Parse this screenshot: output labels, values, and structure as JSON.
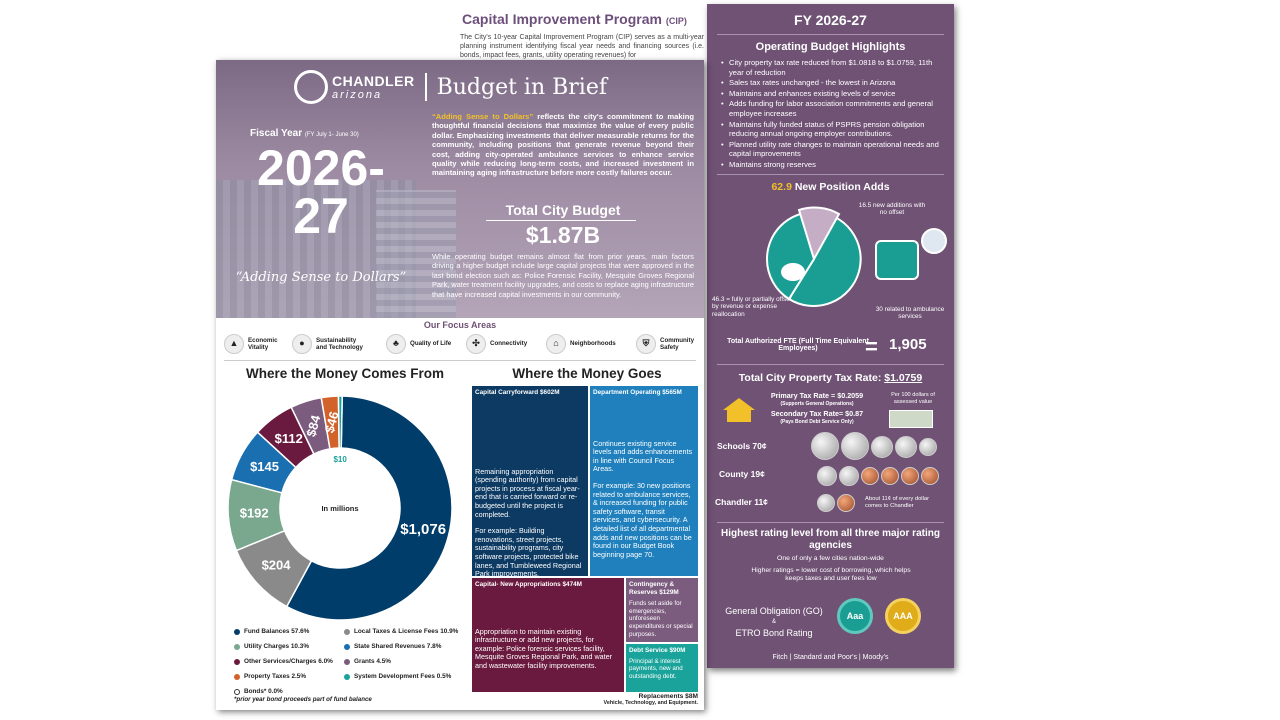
{
  "cip": {
    "title": "Capital Improvement Program",
    "title_abbr": "(CIP)",
    "text": "The City's 10-year Capital Improvement Program (CIP) serves as a multi-year planning instrument identifying fiscal year needs and financing sources (i.e. bonds, impact fees, grants, utility operating revenues) for"
  },
  "brand": {
    "name": "CHANDLER",
    "state": "arizona",
    "doc_title": "Budget in Brief"
  },
  "hero": {
    "fiscal_label": "Fiscal Year",
    "fiscal_sub": "(FY July 1- June 30)",
    "year_top": "2026-",
    "year_bottom": "27",
    "tagline": "“Adding Sense to Dollars”",
    "blurb_lead": "“Adding Sense to Dollars”",
    "blurb": " reflects the city's commitment to making thoughtful financial decisions that maximize the value of every public dollar. Emphasizing investments that deliver measurable returns for the community, including positions that generate revenue beyond their cost, adding city-operated ambulance services to enhance service quality while reducing long-term costs, and increased investment in maintaining aging infrastructure before more costly failures occur.",
    "budget_label": "Total City Budget",
    "budget_value": "$1.87B",
    "para": "While operating budget remains almost flat from prior years, main factors driving a higher budget include large capital projects that were approved in the last bond election such as: Police Forensic Facility, Mesquite Groves Regional Park, water treatment facility upgrades, and costs to replace aging infrastructure that have increased capital investments in our community."
  },
  "focus": {
    "title": "Our Focus Areas",
    "items": [
      {
        "l1": "Economic",
        "l2": "Vitality"
      },
      {
        "l1": "Sustainability",
        "l2": "and Technology"
      },
      {
        "l1": "Quality of Life",
        "l2": ""
      },
      {
        "l1": "Connectivity",
        "l2": ""
      },
      {
        "l1": "Neighborhoods",
        "l2": ""
      },
      {
        "l1": "Community",
        "l2": "Safety"
      }
    ]
  },
  "comes": {
    "title": "Where the Money Comes From",
    "center": "In millions",
    "footnote": "*prior year bond proceeds part of fund balance"
  },
  "goes": {
    "title": "Where the Money Goes",
    "tiles": [
      {
        "head": "Capital Carryforward $602M",
        "body": "Remaining appropriation (spending authority) from capital projects in process at fiscal year-end that is carried forward or re-budgeted until the project is completed.",
        "body2": "For example: Building renovations, street projects, sustainability programs, city software projects, protected bike lanes, and Tumbleweed Regional Park improvements."
      },
      {
        "head": "Department Operating $565M",
        "body": "Continues existing service levels and adds enhancements in line with Council Focus Areas.",
        "body2": "For example: 30 new positions related to ambulance services, & increased funding for public safety software, transit services, and cybersecurity. A detailed list of all departmental adds and new positions can be found in our Budget Book beginning page 70."
      },
      {
        "head": "Capital- New Appropriations $474M",
        "body": "Appropriation to maintain existing infrastructure or add new projects, for example: Police forensic services facility, Mesquite Groves Regional Park, and water and wastewater facility improvements.",
        "body2": ""
      },
      {
        "head": "Contingency & Reserves $129M",
        "body": "Funds set aside for emergencies, unforeseen expenditures or special purposes.",
        "body2": ""
      },
      {
        "head": "Debt Service $90M",
        "body": "Principal & interest payments, new and outstanding debt.",
        "body2": ""
      }
    ],
    "replacements": "Replacements $8M",
    "replacements_sub": "Vehicle, Technology, and Equipment."
  },
  "right": {
    "fy": "FY 2026-27",
    "op_title": "Operating Budget Highlights",
    "bullets": [
      "City property tax rate reduced from $1.0818 to $1.0759, 11th year of reduction",
      "Sales tax rates unchanged - the lowest in Arizona",
      "Maintains and enhances existing levels of service",
      "Adds funding for labor association commitments and general employee increases",
      "Maintains fully funded status of PSPRS pension obligation reducing annual ongoing employer contributions.",
      "Planned utility rate changes to maintain operational needs and capital improvements",
      "Maintains strong reserves"
    ],
    "pos_num": "62.9",
    "pos_label": "New Position Adds",
    "pos_a": "16.5 new additions with no offset",
    "pos_b": "46.3 = fully or partially offset by revenue or expense reallocation",
    "pos_c": "30 related to ambulance services",
    "fte_label": "Total Authorized FTE (Full Time Equivalent Employees)",
    "fte_eq": "=",
    "fte_value": "1,905",
    "ptax_label": "Total City Property Tax Rate:",
    "ptax_value": "$1.0759",
    "primary": "Primary Tax Rate = $0.2059",
    "primary_sub": "(Supports General Operations)",
    "secondary": "Secondary Tax Rate= $0.87",
    "secondary_sub": "(Pays Bond Debt Service Only)",
    "per100": "Per 100 dollars of assessed value",
    "schools": "Schools 70¢",
    "county": "County 19¢",
    "chandler": "Chandler 11¢",
    "chandler_note": "About 11¢ of every dollar comes to Chandler",
    "rating_title": "Highest rating level from all three major rating agencies",
    "rating_sub1": "One of only a few cities nation-wide",
    "rating_sub2": "Higher ratings = lower cost of borrowing, which helps keeps taxes and user fees low",
    "go": "General Obligation (GO)",
    "amp": "&",
    "etro": "ETRO Bond Rating",
    "aaa1": "Aaa",
    "aaa2": "AAA",
    "agencies": "Fitch | Standard and Poor's | Moody's"
  },
  "chart_data": {
    "type": "pie",
    "units": "millions",
    "slices": [
      {
        "label": "Fund Balances 57.6%",
        "value": 1076,
        "display": "$1,076",
        "color": "#003d6b"
      },
      {
        "label": "Local Taxes & License Fees 10.9%",
        "value": 204,
        "display": "$204",
        "color": "#8a8a8a"
      },
      {
        "label": "Utility Charges 10.3%",
        "value": 192,
        "display": "$192",
        "color": "#7aa88e"
      },
      {
        "label": "State Shared Revenues 7.8%",
        "value": 145,
        "display": "$145",
        "color": "#1a6fb0"
      },
      {
        "label": "Other Services/Charges 6.0%",
        "value": 112,
        "display": "$112",
        "color": "#6a1a3e"
      },
      {
        "label": "Grants 4.5%",
        "value": 84,
        "display": "$84",
        "color": "#7b5b7e"
      },
      {
        "label": "Property Taxes 2.5%",
        "value": 46,
        "display": "$46",
        "color": "#d2622a"
      },
      {
        "label": "System Development Fees 0.5%",
        "value": 10,
        "display": "$10",
        "color": "#1aa39a"
      },
      {
        "label": "Bonds* 0.0%",
        "value": 0,
        "display": "",
        "color": "#ffffff"
      }
    ]
  }
}
